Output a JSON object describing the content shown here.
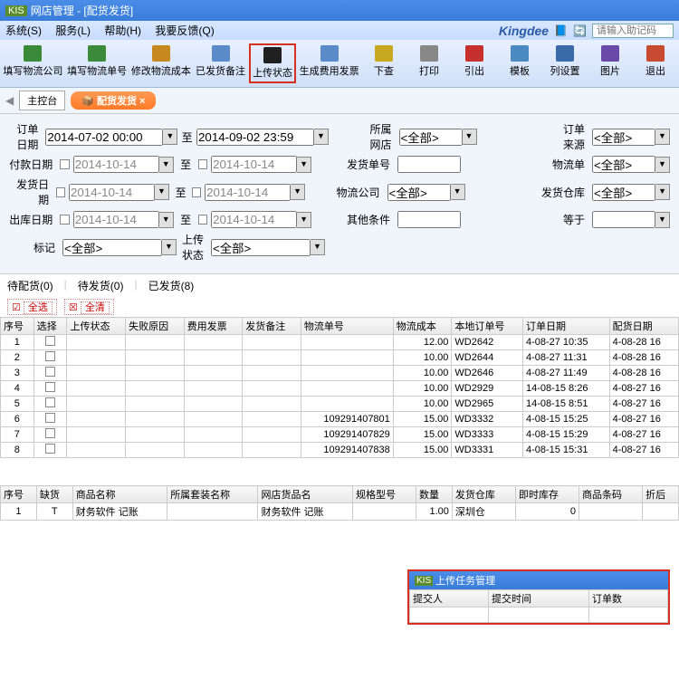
{
  "window": {
    "title": "网店管理 - [配货发货]"
  },
  "menus": [
    "系统(S)",
    "服务(L)",
    "帮助(H)",
    "我要反馈(Q)"
  ],
  "brand": "Kingdee",
  "searchPlaceholder": "请输入助记码",
  "toolbar": [
    {
      "label": "填写物流公司",
      "icon": "#3a8a3a"
    },
    {
      "label": "填写物流单号",
      "icon": "#3a8a3a"
    },
    {
      "label": "修改物流成本",
      "icon": "#c88820"
    },
    {
      "label": "已发货备注",
      "icon": "#5a8ac8"
    },
    {
      "label": "上传状态",
      "icon": "#202020",
      "highlighted": true
    },
    {
      "label": "生成费用发票",
      "icon": "#5a8ac8"
    },
    {
      "label": "下查",
      "icon": "#c8a820"
    },
    {
      "label": "打印",
      "icon": "#888"
    },
    {
      "label": "引出",
      "icon": "#c83030"
    },
    {
      "label": "模板",
      "icon": "#4a8ac0"
    },
    {
      "label": "列设置",
      "icon": "#3a6aa8"
    },
    {
      "label": "图片",
      "icon": "#6a4aa8"
    },
    {
      "label": "退出",
      "icon": "#c84a30"
    }
  ],
  "tabs": {
    "main": "主控台",
    "ship": "配货发货"
  },
  "filters": {
    "orderDate": {
      "label": "订单日期",
      "from": "2014-07-02 00:00",
      "to": "2014-09-02 23:59"
    },
    "payDate": {
      "label": "付款日期",
      "from": "2014-10-14",
      "to": "2014-10-14"
    },
    "shipDate": {
      "label": "发货日期",
      "from": "2014-10-14",
      "to": "2014-10-14"
    },
    "outDate": {
      "label": "出库日期",
      "from": "2014-10-14",
      "to": "2014-10-14"
    },
    "mark": {
      "label": "标记",
      "value": "<全部>"
    },
    "uploadStatus": {
      "label": "上传状态",
      "value": "<全部>"
    },
    "toLabel": "至",
    "shop": {
      "label": "所属网店",
      "value": "<全部>"
    },
    "shipNo": {
      "label": "发货单号"
    },
    "logistics": {
      "label": "物流公司",
      "value": "<全部>"
    },
    "other": {
      "label": "其他条件"
    },
    "orderSource": {
      "label": "订单来源",
      "value": "<全部>"
    },
    "logisticNo": {
      "label": "物流单",
      "value": "<全部>"
    },
    "warehouse": {
      "label": "发货仓库",
      "value": "<全部>"
    },
    "equals": {
      "label": "等于"
    }
  },
  "statusTabs": [
    "待配货(0)",
    "待发货(0)",
    "已发货(8)"
  ],
  "selectAll": "全选",
  "clearAll": "全清",
  "mainCols": [
    "序号",
    "选择",
    "上传状态",
    "失败原因",
    "费用发票",
    "发货备注",
    "物流单号",
    "物流成本",
    "本地订单号",
    "订单日期",
    "配货日期"
  ],
  "mainRows": [
    {
      "n": "1",
      "wl": "",
      "cost": "12.00",
      "ord": "WD2642",
      "od": "4-08-27 10:35",
      "pd": "4-08-28 16"
    },
    {
      "n": "2",
      "wl": "",
      "cost": "10.00",
      "ord": "WD2644",
      "od": "4-08-27 11:31",
      "pd": "4-08-28 16"
    },
    {
      "n": "3",
      "wl": "",
      "cost": "10.00",
      "ord": "WD2646",
      "od": "4-08-27 11:49",
      "pd": "4-08-28 16"
    },
    {
      "n": "4",
      "wl": "",
      "cost": "10.00",
      "ord": "WD2929",
      "od": "14-08-15 8:26",
      "pd": "4-08-27 16"
    },
    {
      "n": "5",
      "wl": "",
      "cost": "10.00",
      "ord": "WD2965",
      "od": "14-08-15 8:51",
      "pd": "4-08-27 16"
    },
    {
      "n": "6",
      "wl": "109291407801",
      "cost": "15.00",
      "ord": "WD3332",
      "od": "4-08-15 15:25",
      "pd": "4-08-27 16"
    },
    {
      "n": "7",
      "wl": "109291407829",
      "cost": "15.00",
      "ord": "WD3333",
      "od": "4-08-15 15:29",
      "pd": "4-08-27 16"
    },
    {
      "n": "8",
      "wl": "109291407838",
      "cost": "15.00",
      "ord": "WD3331",
      "od": "4-08-15 15:31",
      "pd": "4-08-27 16"
    }
  ],
  "detailCols": [
    "序号",
    "缺货",
    "商品名称",
    "所属套装名称",
    "网店货品名",
    "规格型号",
    "数量",
    "发货仓库",
    "即时库存",
    "商品条码",
    "折后"
  ],
  "detailRow": {
    "n": "1",
    "q": "T",
    "name": "财务软件 记账",
    "shop": "财务软件 记账",
    "qty": "1.00",
    "wh": "深圳仓",
    "stock": "0"
  },
  "popup": {
    "title": "上传任务管理",
    "cols": [
      "提交人",
      "提交时间",
      "订单数"
    ]
  }
}
